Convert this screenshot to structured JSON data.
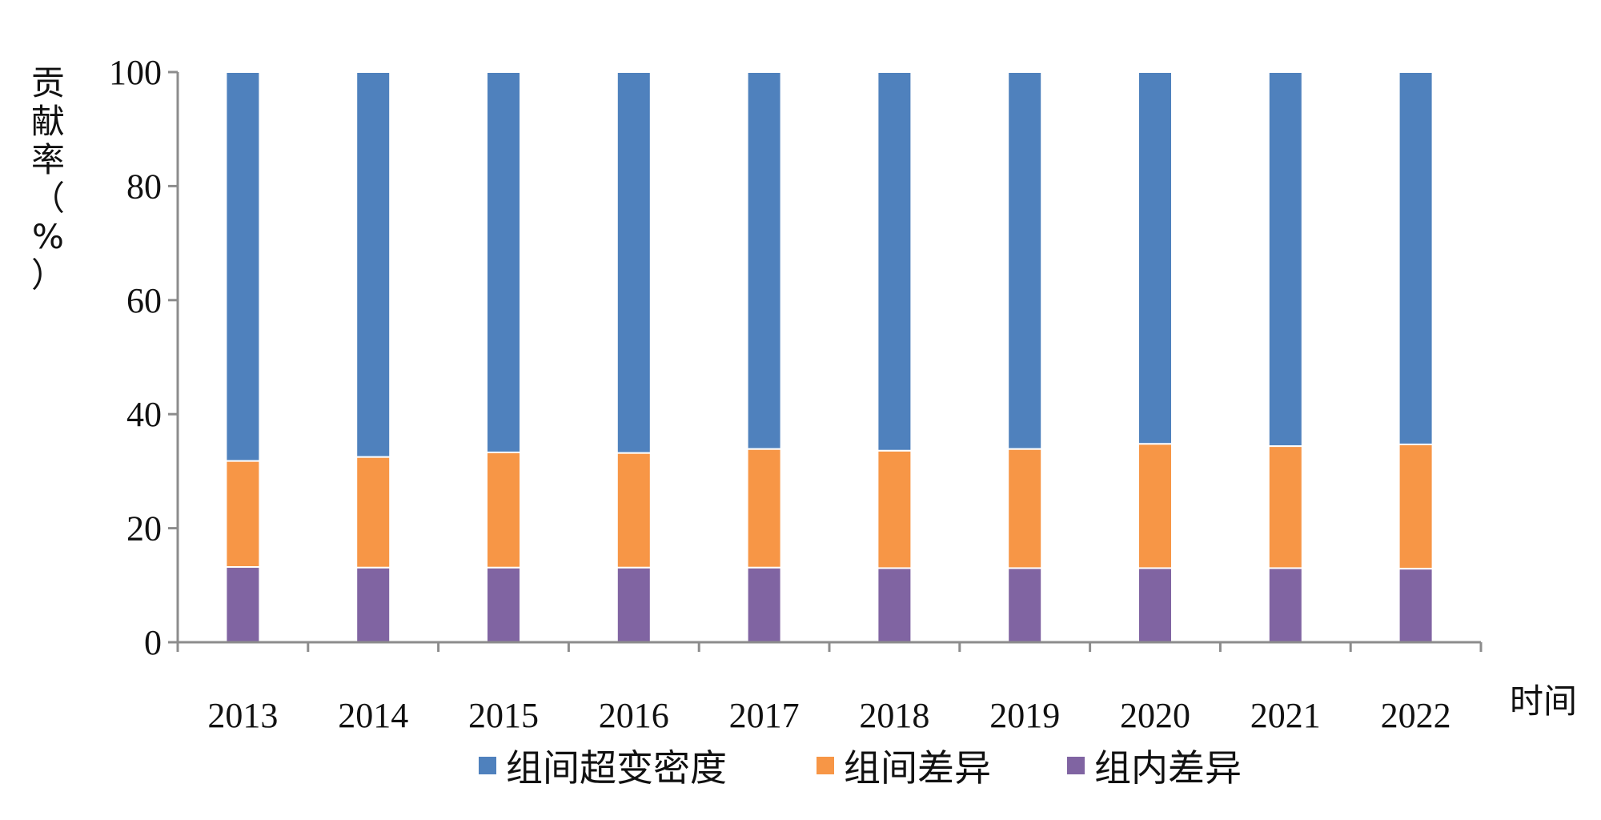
{
  "chart_data": {
    "type": "bar",
    "stacked": true,
    "categories": [
      "2013",
      "2014",
      "2015",
      "2016",
      "2017",
      "2018",
      "2019",
      "2020",
      "2021",
      "2022"
    ],
    "series": [
      {
        "name": "组内差异",
        "color": "#8064A2",
        "values": [
          13.2,
          13.1,
          13.1,
          13.1,
          13.1,
          13.0,
          13.0,
          13.0,
          13.0,
          12.9
        ]
      },
      {
        "name": "组间差异",
        "color": "#F79646",
        "values": [
          18.6,
          19.4,
          20.2,
          20.1,
          20.8,
          20.6,
          20.9,
          21.8,
          21.4,
          21.8
        ]
      },
      {
        "name": "组间超变密度",
        "color": "#4F81BD",
        "values": [
          68.2,
          67.5,
          66.7,
          66.8,
          66.1,
          66.4,
          66.1,
          65.2,
          65.6,
          65.3
        ]
      }
    ],
    "ylim": [
      0,
      100
    ],
    "yticks": [
      0,
      20,
      40,
      60,
      80,
      100
    ],
    "ylabel": "贡献率（%）",
    "xlabel": "时间",
    "legend_order": [
      "组间超变密度",
      "组间差异",
      "组内差异"
    ],
    "legend_position": "bottom",
    "grid": false
  }
}
